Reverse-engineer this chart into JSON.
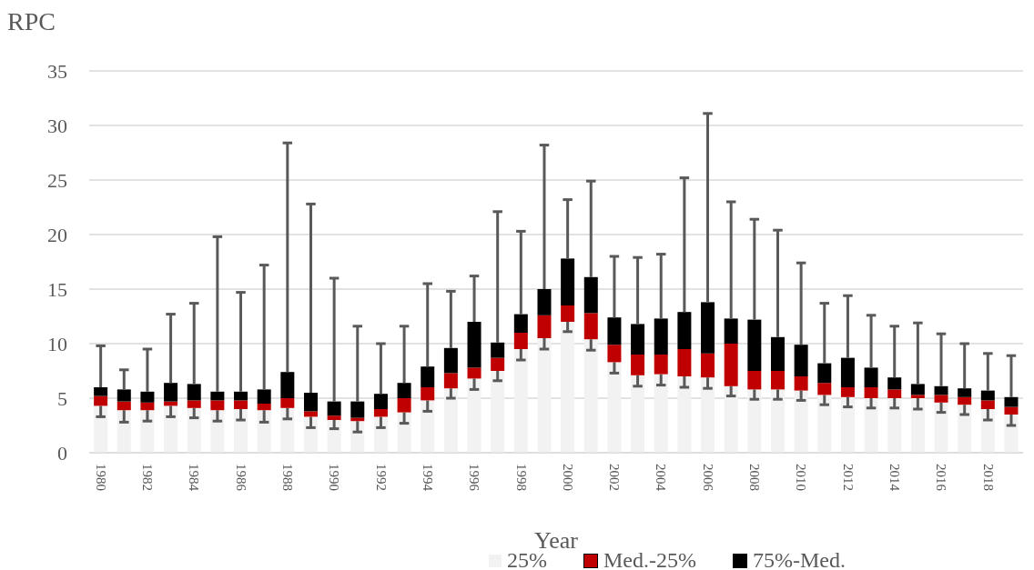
{
  "chart_data": {
    "type": "bar",
    "stacked": true,
    "ylabel": "RPC",
    "xlabel": "Year",
    "categories": [
      "1980",
      null,
      "1982",
      null,
      "1984",
      null,
      "1986",
      null,
      "1988",
      null,
      "1990",
      null,
      "1992",
      null,
      "1994",
      null,
      "1996",
      null,
      "1998",
      null,
      "2000",
      null,
      "2002",
      null,
      "2004",
      null,
      "2006",
      null,
      "2008",
      null,
      "2010",
      null,
      "2012",
      null,
      "2014",
      null,
      "2016",
      null,
      "2018",
      null
    ],
    "series": [
      {
        "name": "25%",
        "color": "#f2f2f2",
        "values": [
          4.3,
          3.9,
          3.9,
          4.3,
          4.1,
          3.9,
          4.0,
          3.9,
          4.1,
          3.3,
          3.0,
          2.9,
          3.3,
          3.7,
          4.8,
          5.9,
          6.8,
          7.5,
          9.5,
          10.5,
          12.0,
          10.4,
          8.3,
          7.1,
          7.2,
          7.0,
          6.9,
          6.1,
          5.8,
          5.8,
          5.7,
          5.3,
          5.1,
          5.0,
          5.0,
          5.0,
          4.6,
          4.4,
          4.0,
          3.5
        ],
        "errors": [
          [
            3.3,
            4.3
          ],
          [
            2.8,
            3.9
          ],
          [
            2.9,
            3.9
          ],
          [
            3.3,
            4.3
          ],
          [
            3.2,
            4.1
          ],
          [
            2.9,
            3.9
          ],
          [
            3.0,
            4.0
          ],
          [
            2.8,
            3.9
          ],
          [
            3.1,
            4.1
          ],
          [
            2.3,
            3.3
          ],
          [
            2.2,
            3.0
          ],
          [
            1.9,
            2.9
          ],
          [
            2.3,
            3.3
          ],
          [
            2.7,
            3.7
          ],
          [
            3.8,
            4.8
          ],
          [
            5.0,
            5.9
          ],
          [
            5.8,
            6.8
          ],
          [
            6.6,
            7.5
          ],
          [
            8.5,
            9.5
          ],
          [
            9.5,
            10.5
          ],
          [
            11.1,
            12.0
          ],
          [
            9.4,
            10.4
          ],
          [
            7.3,
            8.3
          ],
          [
            6.1,
            7.1
          ],
          [
            6.2,
            7.2
          ],
          [
            6.0,
            7.0
          ],
          [
            5.9,
            6.9
          ],
          [
            5.2,
            6.1
          ],
          [
            4.9,
            5.8
          ],
          [
            4.9,
            5.8
          ],
          [
            4.8,
            5.7
          ],
          [
            4.4,
            5.3
          ],
          [
            4.2,
            5.1
          ],
          [
            4.1,
            5.0
          ],
          [
            4.1,
            5.0
          ],
          [
            4.0,
            5.0
          ],
          [
            3.7,
            4.6
          ],
          [
            3.5,
            4.4
          ],
          [
            3.0,
            4.0
          ],
          [
            2.5,
            3.5
          ]
        ]
      },
      {
        "name": "Med.-25%",
        "color": "#c00000",
        "values": [
          0.9,
          0.8,
          0.7,
          0.4,
          0.7,
          0.9,
          0.8,
          0.6,
          0.9,
          0.5,
          0.4,
          0.3,
          0.7,
          1.3,
          1.2,
          1.4,
          1.0,
          1.2,
          1.5,
          2.1,
          1.5,
          2.4,
          1.6,
          1.9,
          1.8,
          2.5,
          2.2,
          3.9,
          1.7,
          1.7,
          1.3,
          1.1,
          0.9,
          1.0,
          0.8,
          0.3,
          0.7,
          0.7,
          0.8,
          0.7
        ]
      },
      {
        "name": "75%-Med.",
        "color": "#000000",
        "values": [
          0.8,
          1.1,
          1.0,
          1.7,
          1.5,
          0.8,
          0.8,
          1.3,
          2.4,
          1.7,
          1.3,
          1.5,
          1.4,
          1.4,
          1.9,
          2.3,
          4.2,
          1.4,
          1.7,
          2.4,
          4.3,
          3.3,
          2.5,
          2.8,
          3.3,
          3.4,
          4.7,
          2.3,
          4.7,
          3.1,
          2.9,
          1.8,
          2.7,
          1.8,
          1.1,
          1.0,
          0.8,
          0.8,
          0.9,
          0.9
        ],
        "errors": [
          [
            6.0,
            9.8
          ],
          [
            5.8,
            7.6
          ],
          [
            5.6,
            9.5
          ],
          [
            6.4,
            12.7
          ],
          [
            6.3,
            13.7
          ],
          [
            5.6,
            19.8
          ],
          [
            5.6,
            14.7
          ],
          [
            5.8,
            17.2
          ],
          [
            7.4,
            28.4
          ],
          [
            5.5,
            22.8
          ],
          [
            4.7,
            16.0
          ],
          [
            4.7,
            11.6
          ],
          [
            5.4,
            10.0
          ],
          [
            6.4,
            11.6
          ],
          [
            7.9,
            15.5
          ],
          [
            9.6,
            14.8
          ],
          [
            12.0,
            16.2
          ],
          [
            10.1,
            22.1
          ],
          [
            12.7,
            20.3
          ],
          [
            15.0,
            28.2
          ],
          [
            17.8,
            23.2
          ],
          [
            16.1,
            24.9
          ],
          [
            12.4,
            18.0
          ],
          [
            11.8,
            17.9
          ],
          [
            12.3,
            18.2
          ],
          [
            12.9,
            25.2
          ],
          [
            13.8,
            31.1
          ],
          [
            12.3,
            23.0
          ],
          [
            12.2,
            21.4
          ],
          [
            10.6,
            20.4
          ],
          [
            9.9,
            17.4
          ],
          [
            8.2,
            13.7
          ],
          [
            8.7,
            14.4
          ],
          [
            7.8,
            12.6
          ],
          [
            6.9,
            11.6
          ],
          [
            6.3,
            11.9
          ],
          [
            6.1,
            10.9
          ],
          [
            5.9,
            10.0
          ],
          [
            5.7,
            9.1
          ],
          [
            5.1,
            8.9
          ]
        ]
      }
    ],
    "ylim": [
      0,
      35
    ],
    "yticks": [
      0,
      5,
      10,
      15,
      20,
      25,
      30,
      35
    ],
    "grid": "y",
    "legend": "bottom"
  }
}
